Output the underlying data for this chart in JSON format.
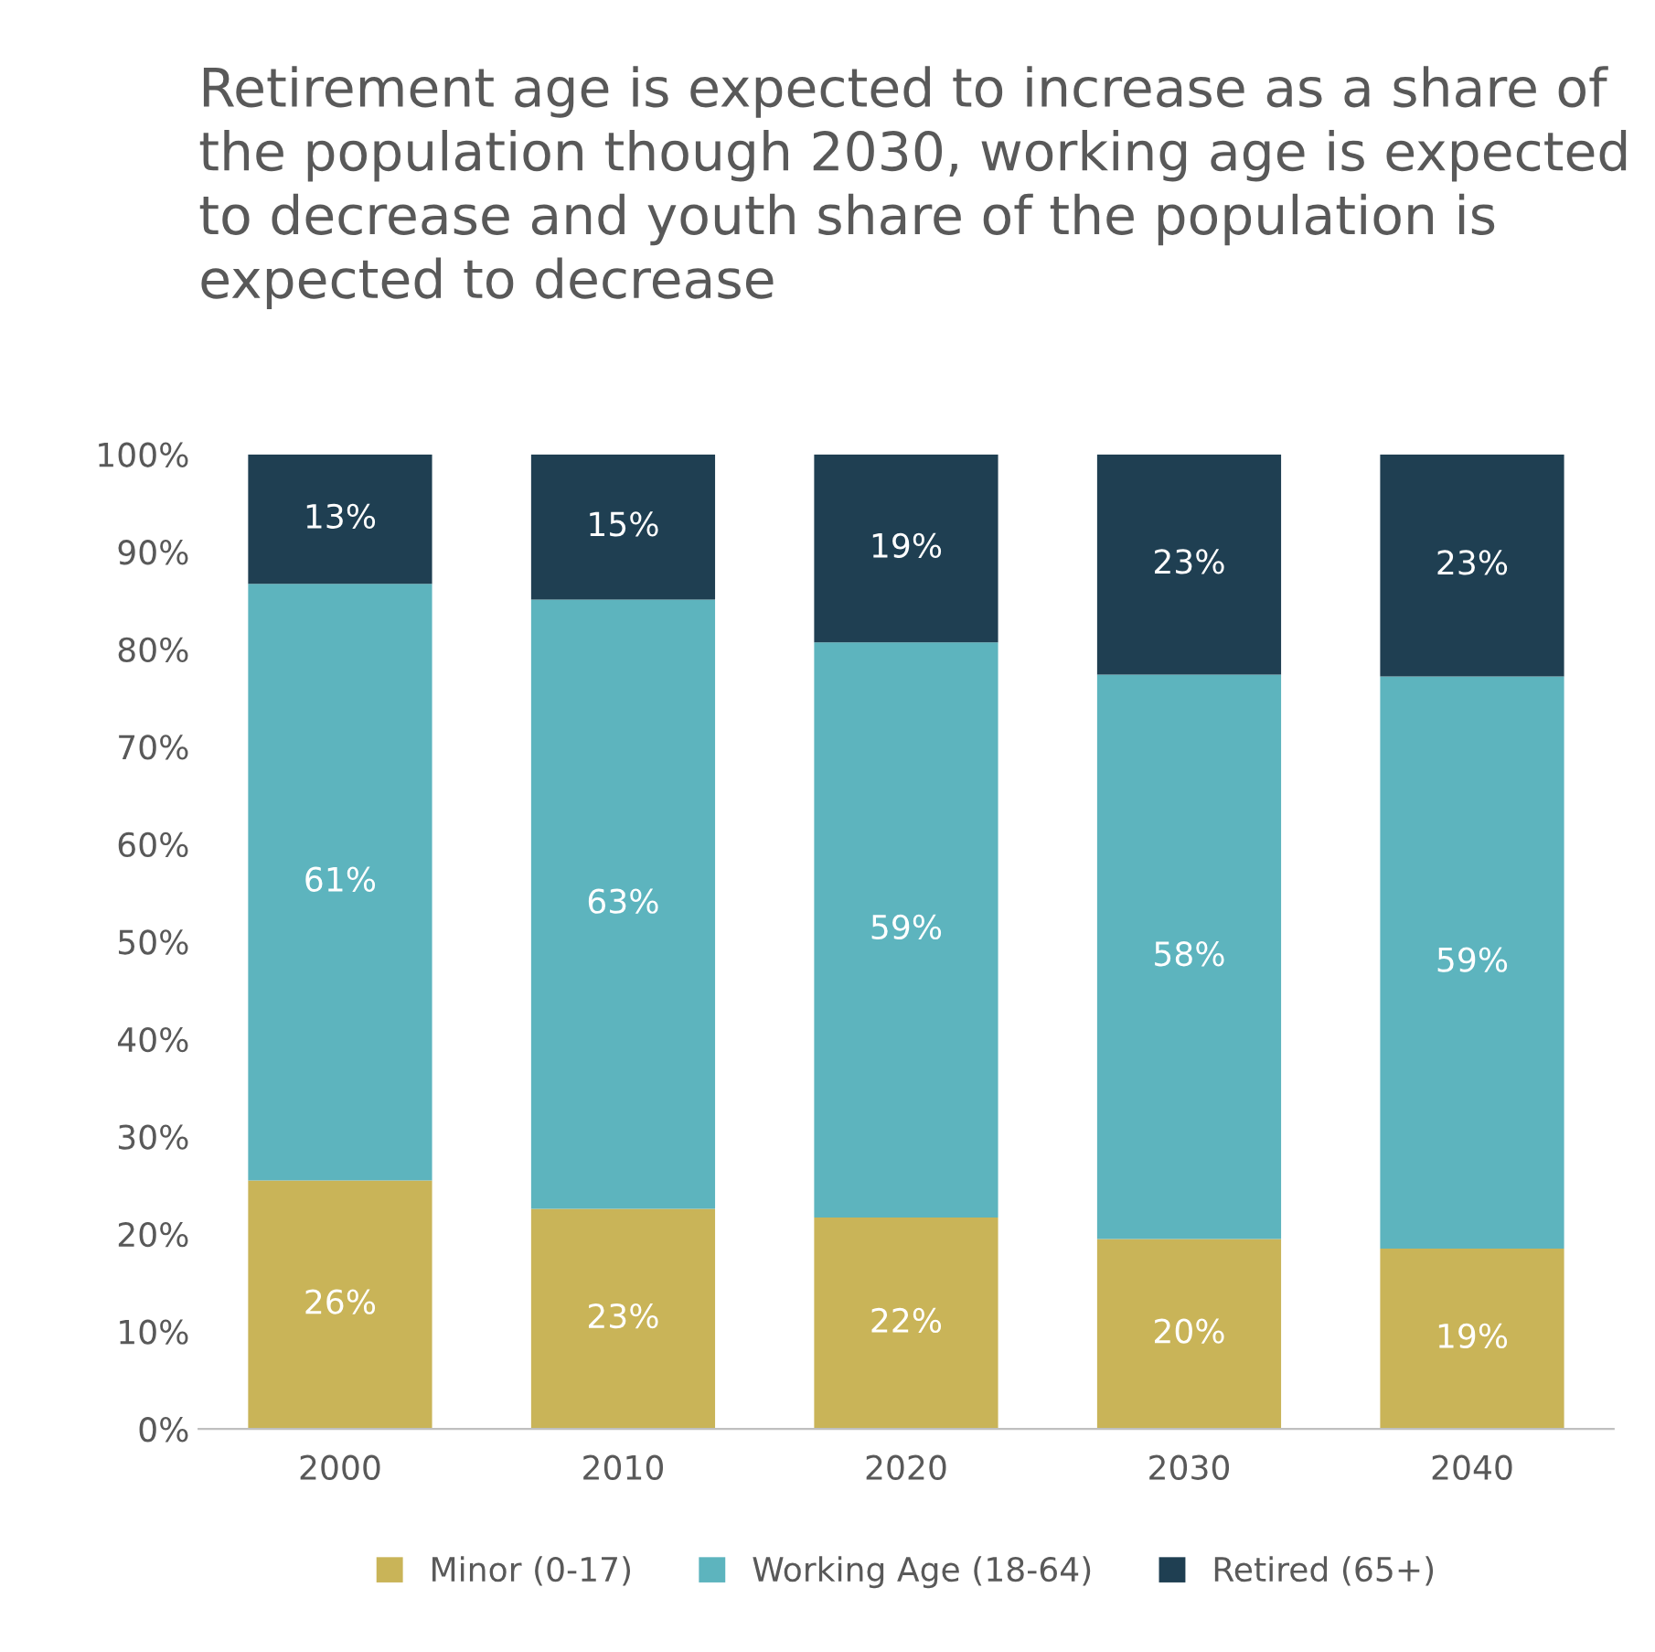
{
  "chart_data": {
    "type": "bar",
    "stacked": true,
    "title": "Retirement age is expected to increase as a share of the population though 2030, working age is expected to decrease and youth share of the population is expected to decrease",
    "categories": [
      "2000",
      "2010",
      "2020",
      "2030",
      "2040"
    ],
    "series": [
      {
        "name": "Minor (0-17)",
        "color": "#c9b458",
        "values": [
          25.5,
          22.6,
          21.7,
          19.5,
          18.5
        ],
        "value_labels": [
          "26%",
          "23%",
          "22%",
          "20%",
          "19%"
        ]
      },
      {
        "name": "Working Age (18-64)",
        "color": "#5db4be",
        "values": [
          61.2,
          62.5,
          59.0,
          57.9,
          58.7
        ],
        "value_labels": [
          "61%",
          "63%",
          "59%",
          "58%",
          "59%"
        ]
      },
      {
        "name": "Retired (65+)",
        "color": "#1f3f52",
        "values": [
          13.3,
          14.9,
          19.3,
          22.6,
          22.8
        ],
        "value_labels": [
          "13%",
          "15%",
          "19%",
          "23%",
          "23%"
        ]
      }
    ],
    "ylim": [
      0,
      100
    ],
    "yticks": [
      {
        "value": 0,
        "label": "0%"
      },
      {
        "value": 10,
        "label": "10%"
      },
      {
        "value": 20,
        "label": "20%"
      },
      {
        "value": 30,
        "label": "30%"
      },
      {
        "value": 40,
        "label": "40%"
      },
      {
        "value": 50,
        "label": "50%"
      },
      {
        "value": 60,
        "label": "60%"
      },
      {
        "value": 70,
        "label": "70%"
      },
      {
        "value": 80,
        "label": "80%"
      },
      {
        "value": 90,
        "label": "90%"
      },
      {
        "value": 100,
        "label": "100%"
      }
    ],
    "grid": false,
    "legend": "bottom"
  }
}
